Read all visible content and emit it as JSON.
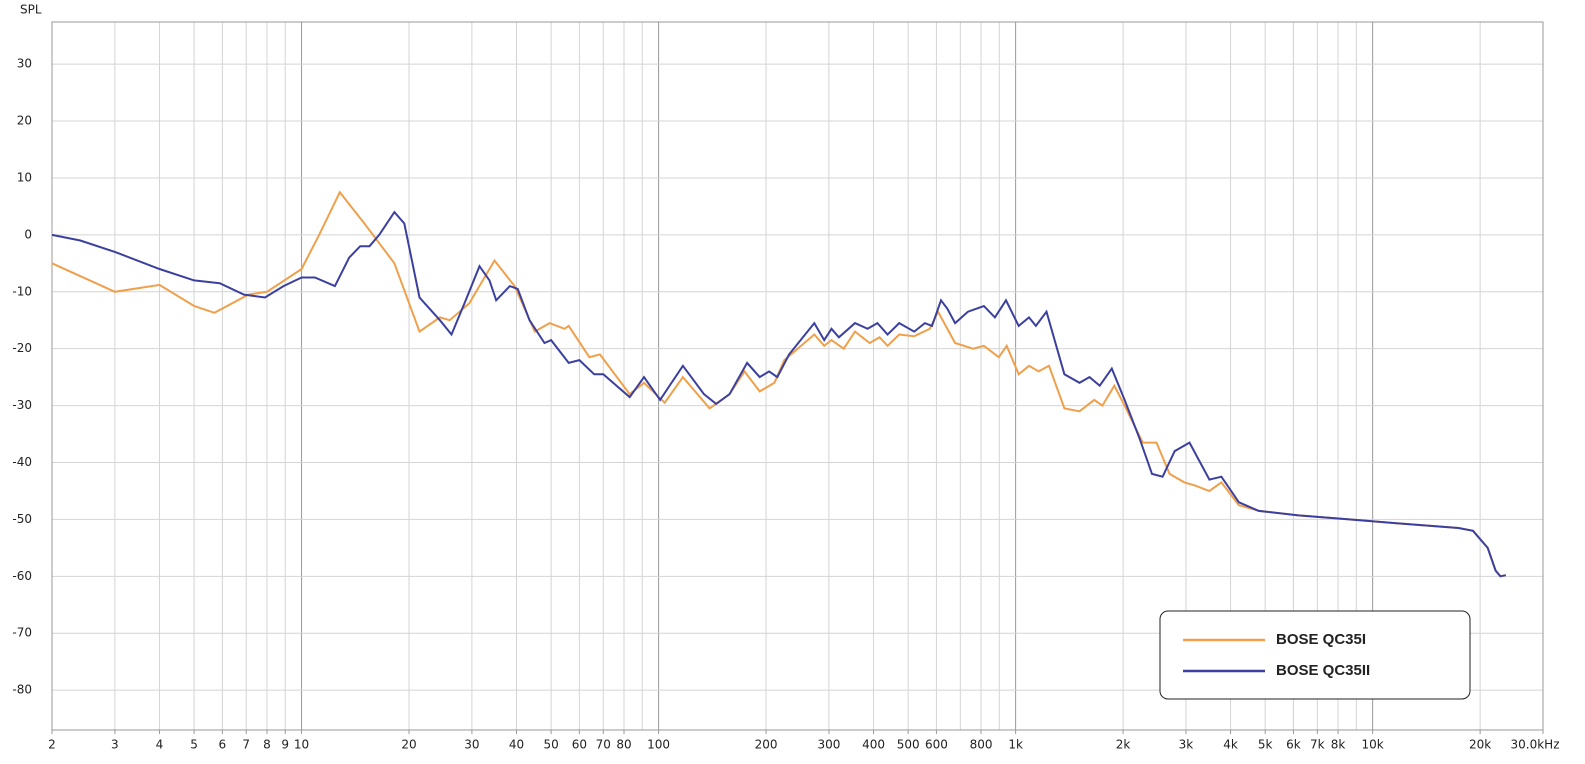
{
  "chart_data": {
    "type": "line",
    "y_label": "SPL",
    "log_x": true,
    "grid": true,
    "legend": "lower right",
    "xlim": [
      2,
      30000
    ],
    "ylim": [
      -87,
      37.4
    ],
    "xticks": [
      2,
      3,
      4,
      5,
      6,
      7,
      8,
      9,
      10,
      20,
      30,
      40,
      50,
      60,
      70,
      80,
      100,
      200,
      300,
      400,
      500,
      600,
      800,
      {
        "value": 1000,
        "label": "1k"
      },
      {
        "value": 2000,
        "label": "2k"
      },
      {
        "value": 3000,
        "label": "3k"
      },
      {
        "value": 4000,
        "label": "4k"
      },
      {
        "value": 5000,
        "label": "5k"
      },
      {
        "value": 6000,
        "label": "6k"
      },
      {
        "value": 7000,
        "label": "7k"
      },
      {
        "value": 8000,
        "label": "8k"
      },
      {
        "value": 10000,
        "label": "10k"
      },
      {
        "value": 20000,
        "label": "20k"
      },
      {
        "value": 30000,
        "label": "30.0kHz"
      }
    ],
    "yticks": [
      30,
      20,
      10,
      0,
      -10,
      -20,
      -30,
      -40,
      -50,
      -60,
      -70,
      -80
    ],
    "series": [
      {
        "name": "BOSE QC35I",
        "color": "#f0a04b",
        "x": [
          2,
          3,
          4,
          5,
          5.7,
          7.1,
          8,
          10,
          11.2,
          12.8,
          15,
          18.2,
          21.4,
          24.4,
          26,
          29.5,
          34.7,
          39.5,
          45,
          49.5,
          54.5,
          56,
          64,
          68.5,
          83,
          91,
          104,
          117,
          139,
          158,
          174,
          192,
          211,
          225,
          273,
          291,
          305,
          330,
          355,
          390,
          416,
          438,
          472,
          520,
          575,
          606,
          677,
          760,
          815,
          897,
          944,
          1020,
          1090,
          1160,
          1240,
          1370,
          1510,
          1660,
          1750,
          1890,
          2020,
          2270,
          2480,
          2700,
          2970,
          3170,
          3490,
          3770,
          4220,
          4800,
          6200,
          8600,
          11800,
          17400,
          19100,
          21000,
          22100,
          22800,
          23600
        ],
        "values": [
          -5,
          -10,
          -8.8,
          -12.5,
          -13.7,
          -10.5,
          -10,
          -6,
          0,
          7.5,
          2,
          -5,
          -17,
          -14.5,
          -15,
          -12,
          -4.5,
          -9,
          -17,
          -15.5,
          -16.5,
          -16,
          -21.5,
          -21,
          -28,
          -26,
          -29.5,
          -25,
          -30.5,
          -28,
          -24,
          -27.5,
          -26,
          -22,
          -17.5,
          -19.5,
          -18.5,
          -20,
          -17,
          -19,
          -18,
          -19.5,
          -17.5,
          -17.8,
          -16.5,
          -13.5,
          -19,
          -20,
          -19.5,
          -21.5,
          -19.5,
          -24.5,
          -23,
          -24,
          -23,
          -30.5,
          -31,
          -29,
          -30,
          -26.5,
          -30,
          -36.5,
          -36.5,
          -42,
          -43.5,
          -44,
          -45,
          -43.5,
          -47.5,
          -48.5,
          -49.3,
          -50,
          -50.7,
          -51.5,
          -52,
          -55,
          -59,
          -60,
          -59.8
        ]
      },
      {
        "name": "BOSE QC35II",
        "color": "#3b40a0",
        "x": [
          2,
          2.4,
          3,
          4,
          5,
          5.9,
          6.9,
          7.9,
          8.9,
          10,
          10.9,
          12.4,
          13.6,
          14.6,
          15.5,
          16.5,
          18.2,
          19.4,
          21.4,
          24.4,
          26.3,
          28.6,
          31.5,
          33.6,
          35.1,
          38.3,
          40.3,
          43.5,
          47.9,
          50,
          56,
          60,
          66,
          70,
          83,
          91,
          101,
          117,
          134,
          145,
          158,
          177,
          192,
          204,
          215,
          232,
          273,
          291,
          305,
          320,
          355,
          385,
          410,
          438,
          472,
          520,
          557,
          583,
          618,
          644,
          677,
          735,
          815,
          875,
          940,
          1020,
          1090,
          1140,
          1220,
          1370,
          1510,
          1610,
          1720,
          1860,
          2020,
          2230,
          2410,
          2580,
          2790,
          3070,
          3490,
          3770,
          4220,
          4800,
          6200,
          8600,
          11800,
          17400,
          19100,
          21000,
          22100,
          22800,
          23600
        ],
        "values": [
          0,
          -1,
          -3,
          -6,
          -8,
          -8.5,
          -10.5,
          -11,
          -9,
          -7.5,
          -7.5,
          -9,
          -4,
          -2,
          -2,
          0,
          4,
          2,
          -11,
          -15,
          -17.5,
          -12,
          -5.5,
          -8,
          -11.5,
          -9,
          -9.5,
          -15,
          -19,
          -18.5,
          -22.5,
          -22,
          -24.5,
          -24.5,
          -28.5,
          -25,
          -29,
          -23,
          -28,
          -29.7,
          -28,
          -22.5,
          -25,
          -24,
          -25,
          -21,
          -15.5,
          -18.5,
          -16.5,
          -18,
          -15.5,
          -16.5,
          -15.5,
          -17.5,
          -15.5,
          -17,
          -15.5,
          -16,
          -11.5,
          -13,
          -15.5,
          -13.5,
          -12.5,
          -14.5,
          -11.5,
          -16,
          -14.5,
          -16,
          -13.5,
          -24.5,
          -26,
          -25,
          -26.5,
          -23.5,
          -29,
          -36,
          -42,
          -42.5,
          -38,
          -36.5,
          -43,
          -42.5,
          -47,
          -48.5,
          -49.3,
          -50,
          -50.7,
          -51.5,
          -52,
          -55,
          -59,
          -60,
          -59.8
        ]
      }
    ]
  }
}
